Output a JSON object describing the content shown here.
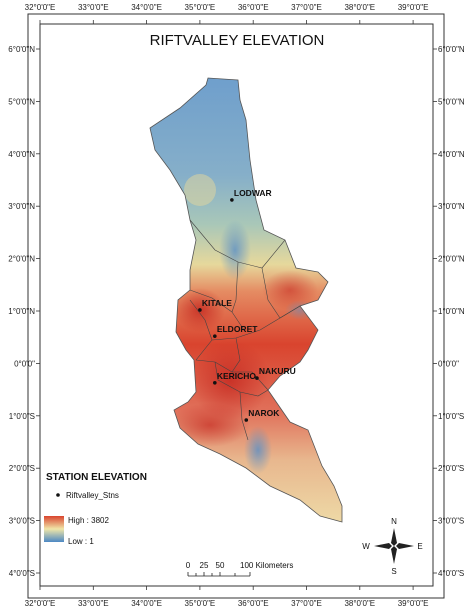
{
  "title": "RIFTVALLEY ELEVATION",
  "lon_ticks": [
    "32°0'0\"E",
    "33°0'0\"E",
    "34°0'0\"E",
    "35°0'0\"E",
    "36°0'0\"E",
    "37°0'0\"E",
    "38°0'0\"E",
    "39°0'0\"E"
  ],
  "lat_ticks": [
    "6°0'0\"N",
    "5°0'0\"N",
    "4°0'0\"N",
    "3°0'0\"N",
    "2°0'0\"N",
    "1°0'0\"N",
    "0°0'0\"",
    "1°0'0\"S",
    "2°0'0\"S",
    "3°0'0\"S",
    "4°0'0\"S"
  ],
  "stations": [
    {
      "name": "LODWAR",
      "lon": 35.6,
      "lat": 3.12
    },
    {
      "name": "KITALE",
      "lon": 35.0,
      "lat": 1.02
    },
    {
      "name": "ELDORET",
      "lon": 35.28,
      "lat": 0.52
    },
    {
      "name": "NAKURU",
      "lon": 36.07,
      "lat": -0.28
    },
    {
      "name": "KERICHO",
      "lon": 35.28,
      "lat": -0.37
    },
    {
      "name": "NAROK",
      "lon": 35.87,
      "lat": -1.08
    }
  ],
  "legend": {
    "title": "STATION ELEVATION",
    "point_label": "Riftvalley_Stns",
    "high_label": "High : 3802",
    "low_label": "Low : 1",
    "color_high": "#d9442e",
    "color_low": "#4d88c4"
  },
  "scale": {
    "labels": [
      "0",
      "25",
      "50",
      "100 Kilometers"
    ]
  },
  "north": {
    "n": "N",
    "s": "S",
    "e": "E",
    "w": "W"
  }
}
